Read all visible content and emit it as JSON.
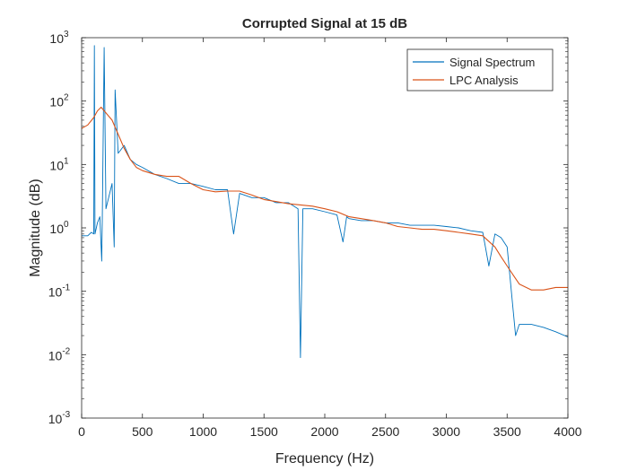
{
  "chart_data": {
    "type": "line",
    "title": "Corrupted Signal at 15 dB",
    "xlabel": "Frequency (Hz)",
    "ylabel": "Magnitude (dB)",
    "xlim": [
      0,
      4000
    ],
    "ylim": [
      0.001,
      1000
    ],
    "yscale": "log",
    "grid": false,
    "legend_position": "top-right",
    "x_ticks": [
      0,
      500,
      1000,
      1500,
      2000,
      2500,
      3000,
      3500,
      4000
    ],
    "x_tick_labels": [
      "0",
      "500",
      "1000",
      "1500",
      "2000",
      "2500",
      "3000",
      "3500",
      "4000"
    ],
    "y_ticks": [
      0.001,
      0.01,
      0.1,
      1,
      10,
      100,
      1000
    ],
    "y_tick_labels": [
      {
        "base": "10",
        "exp": "-3"
      },
      {
        "base": "10",
        "exp": "-2"
      },
      {
        "base": "10",
        "exp": "-1"
      },
      {
        "base": "10",
        "exp": "0"
      },
      {
        "base": "10",
        "exp": "1"
      },
      {
        "base": "10",
        "exp": "2"
      },
      {
        "base": "10",
        "exp": "3"
      }
    ],
    "series": [
      {
        "name": "Signal Spectrum",
        "color": "#0072BD",
        "x": [
          0,
          50,
          80,
          100,
          105,
          110,
          130,
          150,
          165,
          170,
          185,
          200,
          250,
          268,
          275,
          300,
          350,
          400,
          450,
          500,
          600,
          700,
          800,
          900,
          1000,
          1100,
          1200,
          1250,
          1300,
          1400,
          1500,
          1600,
          1700,
          1780,
          1800,
          1820,
          1900,
          2000,
          2100,
          2150,
          2180,
          2200,
          2300,
          2400,
          2500,
          2600,
          2700,
          2800,
          2900,
          3000,
          3100,
          3200,
          3300,
          3350,
          3400,
          3450,
          3500,
          3550,
          3570,
          3600,
          3650,
          3700,
          3800,
          3900,
          4000
        ],
        "values": [
          0.75,
          0.75,
          0.85,
          0.8,
          750,
          0.8,
          1.2,
          1.5,
          0.3,
          1.3,
          700,
          2.0,
          5.0,
          0.5,
          150,
          15,
          20,
          12,
          10,
          9,
          7,
          6,
          5,
          5,
          4.5,
          4,
          4,
          0.8,
          3.5,
          3,
          3,
          2.5,
          2.5,
          2.0,
          0.009,
          2.0,
          2,
          1.8,
          1.6,
          0.6,
          1.5,
          1.4,
          1.3,
          1.3,
          1.2,
          1.2,
          1.1,
          1.1,
          1.1,
          1.05,
          1.0,
          0.9,
          0.85,
          0.25,
          0.8,
          0.7,
          0.5,
          0.05,
          0.02,
          0.03,
          0.03,
          0.03,
          0.027,
          0.023,
          0.019
        ]
      },
      {
        "name": "LPC Analysis",
        "color": "#D95319",
        "x": [
          0,
          50,
          100,
          130,
          160,
          200,
          250,
          300,
          350,
          400,
          450,
          500,
          600,
          700,
          800,
          900,
          1000,
          1100,
          1200,
          1300,
          1400,
          1500,
          1600,
          1700,
          1800,
          1900,
          2000,
          2100,
          2200,
          2300,
          2400,
          2500,
          2600,
          2700,
          2800,
          2900,
          3000,
          3100,
          3200,
          3300,
          3400,
          3450,
          3500,
          3550,
          3600,
          3700,
          3800,
          3900,
          4000
        ],
        "values": [
          37,
          42,
          55,
          70,
          80,
          65,
          50,
          30,
          18,
          12,
          9,
          8,
          7,
          6.5,
          6.5,
          5,
          4,
          3.7,
          3.8,
          3.8,
          3.3,
          2.8,
          2.6,
          2.4,
          2.3,
          2.2,
          2.0,
          1.8,
          1.5,
          1.4,
          1.3,
          1.2,
          1.05,
          1.0,
          0.95,
          0.95,
          0.9,
          0.85,
          0.8,
          0.75,
          0.5,
          0.35,
          0.25,
          0.18,
          0.13,
          0.105,
          0.105,
          0.115,
          0.115
        ]
      }
    ]
  }
}
